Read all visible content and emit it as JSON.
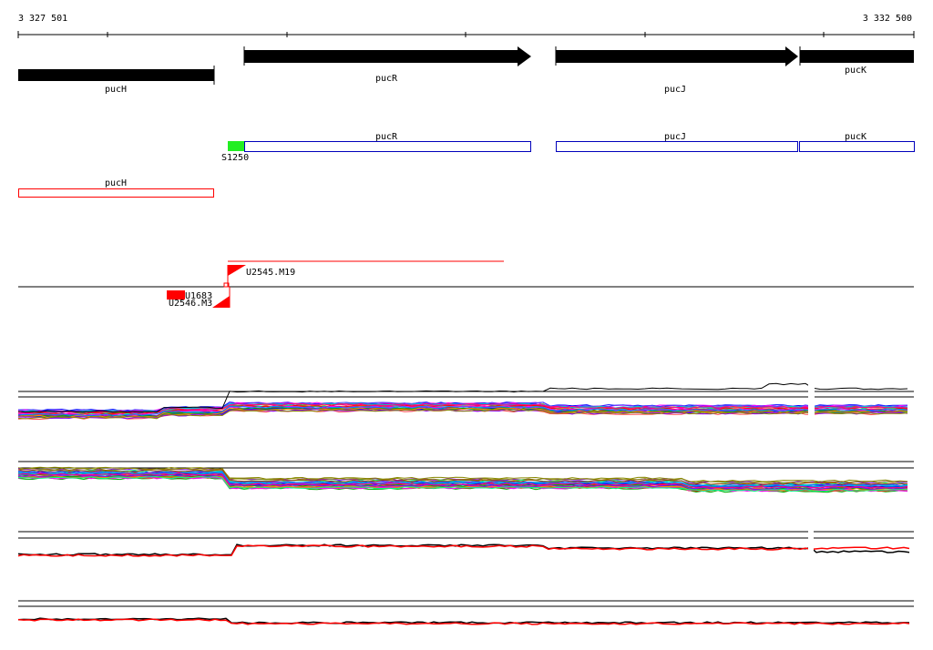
{
  "ruler": {
    "start_label": "3 327 501",
    "end_label": "3 332 500",
    "ticks": 5
  },
  "genes_top": [
    {
      "label": "pucH",
      "strand": "reverse"
    },
    {
      "label": "pucR",
      "strand": "forward"
    },
    {
      "label": "pucJ",
      "strand": "forward"
    },
    {
      "label": "pucK",
      "strand": "forward"
    }
  ],
  "annotations_blue": [
    {
      "label": "pucR"
    },
    {
      "label": "pucJ"
    },
    {
      "label": "pucK"
    }
  ],
  "annotation_red": {
    "label": "pucH"
  },
  "site": {
    "label": "S1250",
    "color": "#22ee22"
  },
  "segments": [
    {
      "label": "U2545.M19"
    },
    {
      "label": "U1683"
    },
    {
      "label": "U2546.M3"
    }
  ],
  "colors": {
    "gene": "#000000",
    "blue_box": "#0000bb",
    "red_box": "#ff0000",
    "accent_red": "#ff0000"
  },
  "panels": [
    {
      "name": "expression-multi-1"
    },
    {
      "name": "expression-multi-2"
    },
    {
      "name": "expression-pair-1"
    },
    {
      "name": "expression-pair-2"
    }
  ]
}
